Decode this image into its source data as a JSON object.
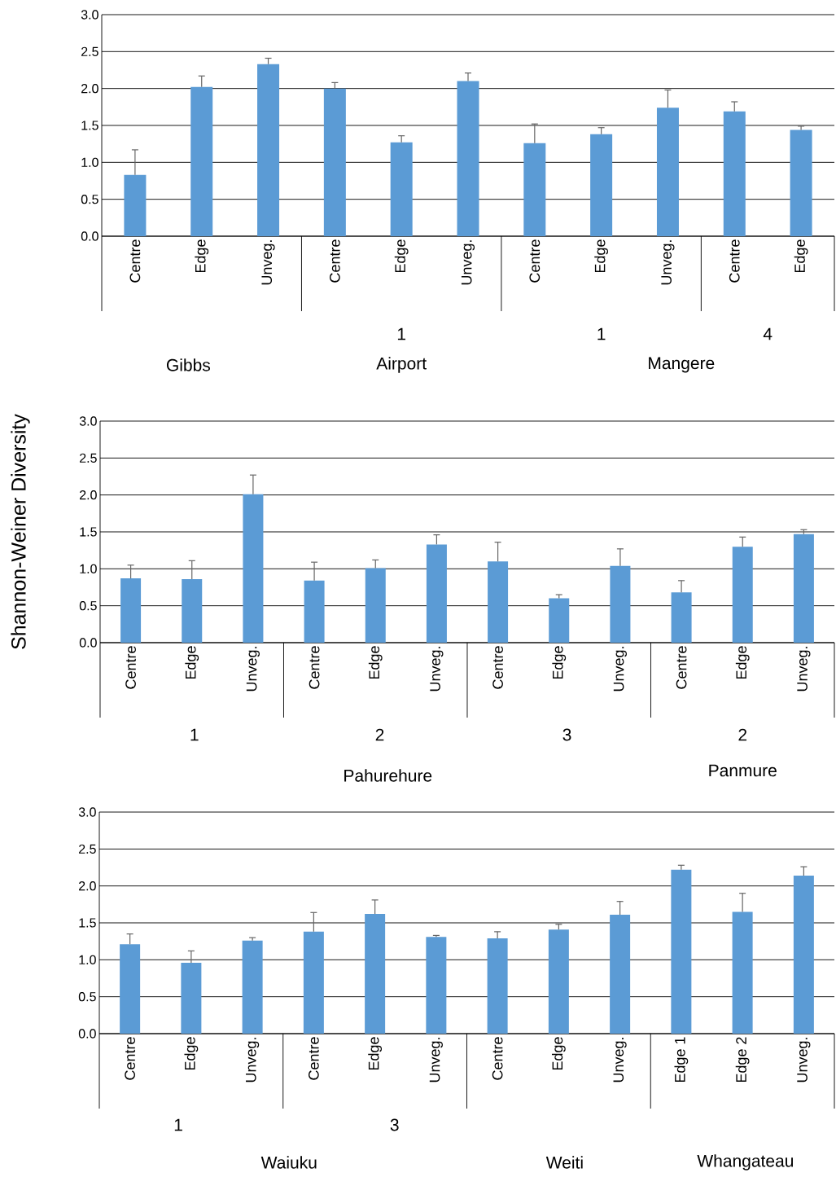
{
  "chart_data": [
    {
      "type": "bar",
      "categories": [
        "Centre",
        "Edge",
        "Unveg.",
        "Centre",
        "Edge",
        "Unveg.",
        "Centre",
        "Edge",
        "Unveg.",
        "Centre",
        "Edge"
      ],
      "values": [
        0.83,
        2.02,
        2.33,
        2.0,
        1.27,
        2.1,
        1.26,
        1.38,
        1.74,
        1.69,
        1.44
      ],
      "errors": [
        [
          0.83,
          1.17
        ],
        [
          2.02,
          2.17
        ],
        [
          2.33,
          2.41
        ],
        [
          2.0,
          2.08
        ],
        [
          1.27,
          1.36
        ],
        [
          2.1,
          2.21
        ],
        [
          1.26,
          1.52
        ],
        [
          1.38,
          1.47
        ],
        [
          1.74,
          1.98
        ],
        [
          1.69,
          1.82
        ],
        [
          1.44,
          1.49
        ]
      ],
      "color": "#5b9bd5",
      "ylim": [
        0,
        3
      ],
      "yticks": [
        {
          "value": 0,
          "label": "0.0"
        },
        {
          "value": 0.5,
          "label": "0.5"
        },
        {
          "value": 1,
          "label": "1.0"
        },
        {
          "value": 1.5,
          "label": "1.5"
        },
        {
          "value": 2,
          "label": "2.0"
        },
        {
          "value": 2.5,
          "label": "2.5"
        },
        {
          "value": 3,
          "label": "3.0"
        }
      ],
      "grid": "y",
      "annotations": [
        "1",
        "1",
        "4",
        "Gibbs",
        "Airport",
        "Mangere"
      ]
    },
    {
      "type": "bar",
      "categories": [
        "Centre",
        "Edge",
        "Unveg.",
        "Centre",
        "Edge",
        "Unveg.",
        "Centre",
        "Edge",
        "Unveg.",
        "Centre",
        "Edge",
        "Unveg."
      ],
      "values": [
        0.87,
        0.86,
        2.01,
        0.84,
        1.01,
        1.33,
        1.1,
        0.6,
        1.04,
        0.68,
        1.3,
        1.47
      ],
      "errors": [
        [
          0.87,
          1.05
        ],
        [
          0.86,
          1.11
        ],
        [
          2.01,
          2.27
        ],
        [
          0.84,
          1.09
        ],
        [
          1.01,
          1.12
        ],
        [
          1.33,
          1.46
        ],
        [
          1.1,
          1.36
        ],
        [
          0.6,
          0.65
        ],
        [
          1.04,
          1.27
        ],
        [
          0.68,
          0.84
        ],
        [
          1.3,
          1.43
        ],
        [
          1.47,
          1.53
        ]
      ],
      "color": "#5b9bd5",
      "ylim": [
        0,
        3
      ],
      "yticks": [
        {
          "value": 0,
          "label": "0.0"
        },
        {
          "value": 0.5,
          "label": "0.5"
        },
        {
          "value": 1,
          "label": "1.0"
        },
        {
          "value": 1.5,
          "label": "1.5"
        },
        {
          "value": 2,
          "label": "2.0"
        },
        {
          "value": 2.5,
          "label": "2.5"
        },
        {
          "value": 3,
          "label": "3.0"
        }
      ],
      "grid": "y",
      "ylabel": "Shannon-Weiner Diversity",
      "annotations": [
        "1",
        "2",
        "3",
        "2",
        "Pahurehure",
        "Panmure"
      ]
    },
    {
      "type": "bar",
      "categories": [
        "Centre",
        "Edge",
        "Unveg.",
        "Centre",
        "Edge",
        "Unveg.",
        "Centre",
        "Edge",
        "Unveg.",
        "Edge 1",
        "Edge 2",
        "Unveg."
      ],
      "values": [
        1.21,
        0.96,
        1.26,
        1.38,
        1.62,
        1.31,
        1.29,
        1.41,
        1.61,
        2.22,
        1.65,
        2.14
      ],
      "errors": [
        [
          1.21,
          1.35
        ],
        [
          0.96,
          1.12
        ],
        [
          1.26,
          1.3
        ],
        [
          1.38,
          1.64
        ],
        [
          1.62,
          1.81
        ],
        [
          1.31,
          1.33
        ],
        [
          1.29,
          1.38
        ],
        [
          1.41,
          1.48
        ],
        [
          1.61,
          1.79
        ],
        [
          2.22,
          2.28
        ],
        [
          1.65,
          1.9
        ],
        [
          2.14,
          2.26
        ]
      ],
      "color": "#5b9bd5",
      "ylim": [
        0,
        3
      ],
      "yticks": [
        {
          "value": 0,
          "label": "0.0"
        },
        {
          "value": 0.5,
          "label": "0.5"
        },
        {
          "value": 1,
          "label": "1.0"
        },
        {
          "value": 1.5,
          "label": "1.5"
        },
        {
          "value": 2,
          "label": "2.0"
        },
        {
          "value": 2.5,
          "label": "2.5"
        },
        {
          "value": 3,
          "label": "3.0"
        }
      ],
      "grid": "y",
      "annotations": [
        "1",
        "3",
        "Waiuku",
        "Weiti",
        "Whangateau"
      ]
    }
  ]
}
